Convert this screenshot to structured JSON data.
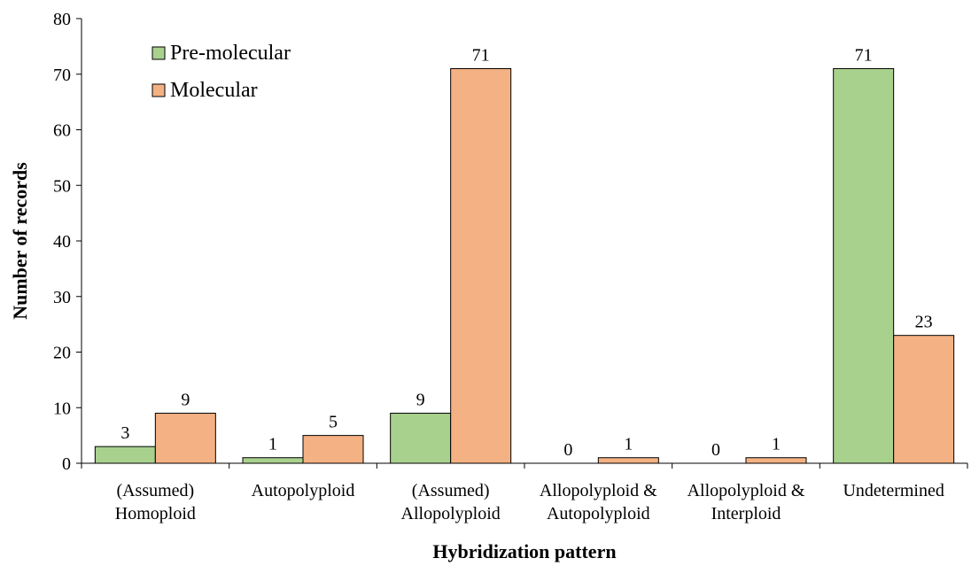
{
  "chart_data": {
    "type": "bar",
    "title": "",
    "xlabel": "Hybridization pattern",
    "ylabel": "Number of records",
    "ylim": [
      0,
      80
    ],
    "yticks": [
      0,
      10,
      20,
      30,
      40,
      50,
      60,
      70,
      80
    ],
    "grid": false,
    "legend_position": "top-left",
    "categories": [
      [
        "(Assumed)",
        "Homoploid"
      ],
      [
        "Autopolyploid"
      ],
      [
        "(Assumed)",
        "Allopolyploid"
      ],
      [
        "Allopolyploid &",
        "Autopolyploid"
      ],
      [
        "Allopolyploid &",
        "Interploid"
      ],
      [
        "Undetermined"
      ]
    ],
    "series": [
      {
        "name": "Pre-molecular",
        "color": "#a9d18e",
        "values": [
          3,
          1,
          9,
          0,
          0,
          71
        ]
      },
      {
        "name": "Molecular",
        "color": "#f4b183",
        "values": [
          9,
          5,
          71,
          1,
          1,
          23
        ]
      }
    ]
  }
}
